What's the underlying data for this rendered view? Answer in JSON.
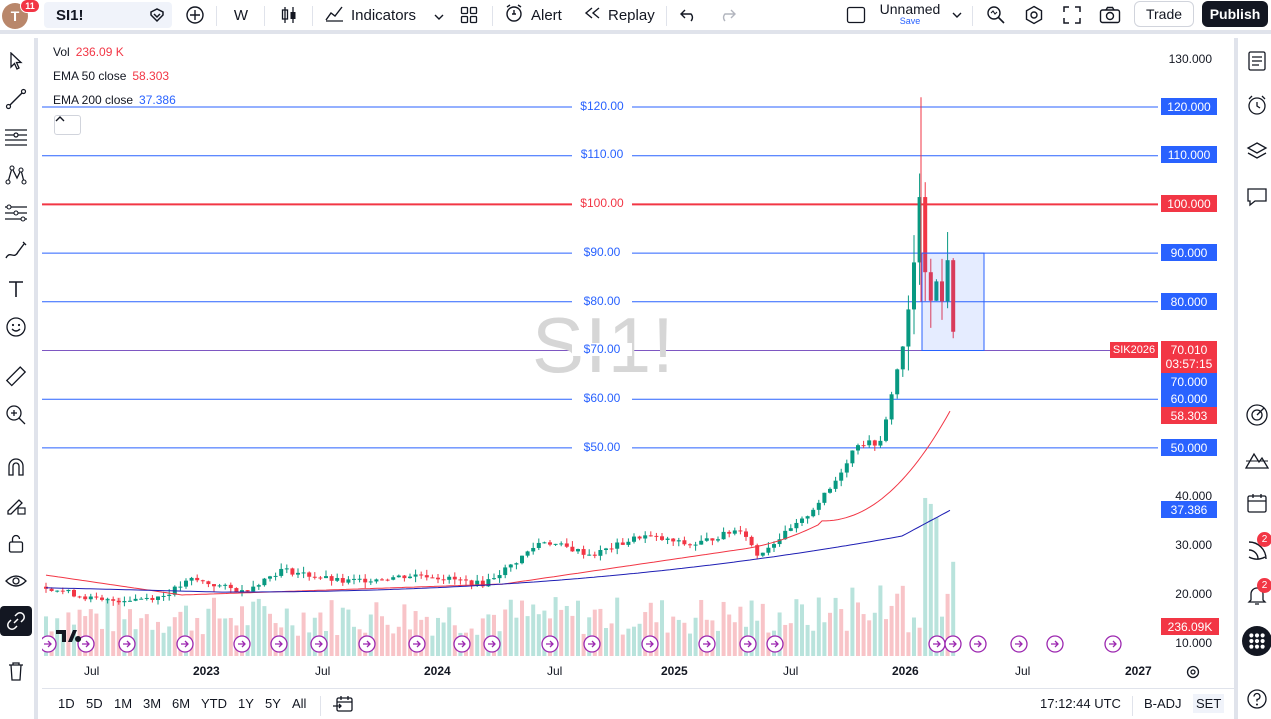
{
  "topbar": {
    "avatar_letter": "T",
    "avatar_badge": "11",
    "symbol": "SI1!",
    "interval": "W",
    "indicators_label": "Indicators",
    "alert_label": "Alert",
    "replay_label": "Replay",
    "layout_name": "Unnamed",
    "layout_save": "Save",
    "trade_label": "Trade",
    "publish_label": "Publish"
  },
  "legend": {
    "vol_label": "Vol",
    "vol_value": "236.09 K",
    "ema50_label": "EMA 50 close",
    "ema50_value": "58.303",
    "ema200_label": "EMA 200 close",
    "ema200_value": "37.386"
  },
  "watermark": "SI1!",
  "price_axis": [
    "130.000",
    "40.000",
    "30.000",
    "20.000",
    "10.000"
  ],
  "price_tags": {
    "l120": "120.000",
    "l110": "110.000",
    "l100": "100.000",
    "l90": "90.000",
    "l80": "80.000",
    "last_price": "70.010",
    "countdown": "03:57:15",
    "l70": "70.000",
    "l60": "60.000",
    "ema50": "58.303",
    "l50": "50.000",
    "ema200": "37.386",
    "vol": "236.09K",
    "contract": "SIK2026"
  },
  "line_labels": [
    "$120.00",
    "$110.00",
    "$100.00",
    "$90.00",
    "$80.00",
    "$70.00",
    "$60.00",
    "$50.00"
  ],
  "time_axis": [
    "Jul",
    "2023",
    "Jul",
    "2024",
    "Jul",
    "2025",
    "Jul",
    "2026",
    "Jul",
    "2027"
  ],
  "bottombar": {
    "ranges": [
      "1D",
      "5D",
      "1M",
      "3M",
      "6M",
      "YTD",
      "1Y",
      "5Y",
      "All"
    ],
    "clock": "17:12:44 UTC",
    "adj": "B-ADJ",
    "session": "SET"
  },
  "right_panel": {
    "alerts_badge": "2",
    "notif_badge": "2"
  },
  "colors": {
    "up": "#089981",
    "down": "#f23645",
    "ema50": "#f23645",
    "ema200": "#2962ff",
    "hline": "#2962ff",
    "hline_red": "#f23645"
  },
  "chart_data": {
    "type": "candlestick",
    "y_axis_ticks": [
      130,
      120,
      110,
      100,
      90,
      80,
      70,
      60,
      50,
      40,
      30,
      20,
      10
    ],
    "horizontal_lines": [
      120,
      110,
      100,
      90,
      80,
      70,
      60,
      50
    ],
    "last_price": 70.01,
    "ema50_last": 58.303,
    "ema200_last": 37.386,
    "volume_last": "236.09K"
  }
}
